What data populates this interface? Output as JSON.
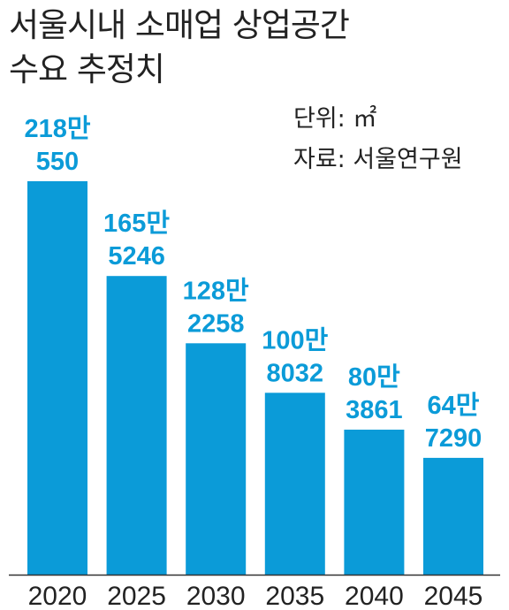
{
  "title_line1": "서울시내 소매업 상업공간",
  "title_line2": "수요 추정치",
  "unit_text": "단위: ㎡",
  "source_text": "자료: 서울연구원",
  "colors": {
    "bar": "#0b9bd8",
    "text": "#222222",
    "axis": "#333333"
  },
  "chart_data": {
    "type": "bar",
    "title": "서울시내 소매업 상업공간 수요 추정치",
    "unit": "㎡",
    "categories": [
      "2020",
      "2025",
      "2030",
      "2035",
      "2040",
      "2045"
    ],
    "values": [
      2180550,
      1655246,
      1282258,
      1008032,
      803861,
      647290
    ],
    "data_labels": [
      [
        "218만",
        "550"
      ],
      [
        "165만",
        "5246"
      ],
      [
        "128만",
        "2258"
      ],
      [
        "100만",
        "8032"
      ],
      [
        "80만",
        "3861"
      ],
      [
        "64만",
        "7290"
      ]
    ],
    "ylim": [
      0,
      2500000
    ],
    "grid": false,
    "legend": "none"
  }
}
